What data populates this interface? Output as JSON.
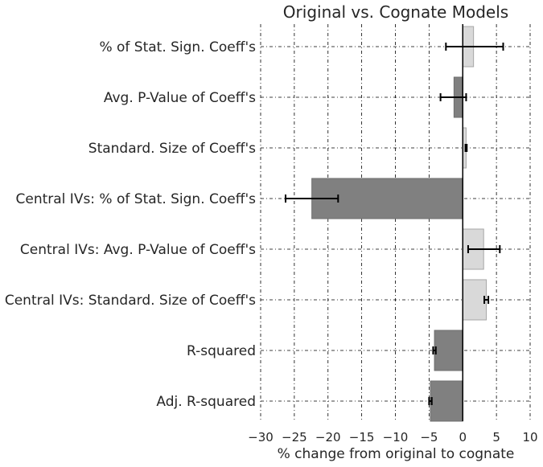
{
  "chart_data": {
    "type": "bar",
    "orientation": "horizontal",
    "title": "Original vs. Cognate Models",
    "xlabel": "% change from original to cognate",
    "ylabel": "",
    "xlim": [
      -30,
      10
    ],
    "xticks": [
      -30,
      -25,
      -20,
      -15,
      -10,
      -5,
      0,
      5,
      10
    ],
    "xtick_labels": [
      "−30",
      "−25",
      "−20",
      "−15",
      "−10",
      "−5",
      "0",
      "5",
      "10"
    ],
    "grid": true,
    "categories": [
      "% of Stat. Sign. Coeff's",
      "Avg. P-Value of Coeff's",
      "Standard. Size of Coeff's",
      "Central IVs: % of Stat. Sign. Coeff's",
      "Central IVs: Avg. P-Value of Coeff's",
      "Central IVs: Standard. Size of Coeff's",
      "R-squared",
      "Adj. R-squared"
    ],
    "values": [
      1.6,
      -1.3,
      0.5,
      -22.4,
      3.1,
      3.5,
      -4.2,
      -4.8
    ],
    "error_low": [
      -2.5,
      -3.3,
      0.4,
      -26.3,
      0.8,
      3.2,
      -4.4,
      -5.0
    ],
    "error_high": [
      6.0,
      0.5,
      0.6,
      -18.5,
      5.5,
      3.8,
      -4.0,
      -4.6
    ],
    "colors": {
      "positive": "#d9d9d9",
      "negative": "#808080",
      "positive_edge": "#a6a6a6",
      "negative_edge": "#6e6e6e",
      "error": "#000000",
      "grid": "#000000"
    }
  }
}
